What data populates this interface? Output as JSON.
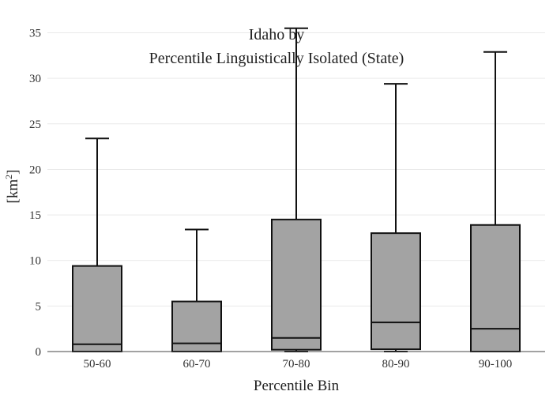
{
  "chart_data": {
    "type": "box",
    "title_lines": [
      "Idaho  by",
      "Percentile Linguistically Isolated (State)"
    ],
    "xlabel": "Percentile Bin",
    "ylabel_main": "[km",
    "ylabel_sup": "2",
    "ylabel_close": "]",
    "ylim": [
      0,
      36
    ],
    "yticks": [
      0,
      5,
      10,
      15,
      20,
      25,
      30,
      35
    ],
    "grid": true,
    "box_fill": "#a3a3a3",
    "box_stroke": "#111111",
    "categories": [
      "50-60",
      "60-70",
      "70-80",
      "80-90",
      "90-100"
    ],
    "boxes": [
      {
        "category": "50-60",
        "min": 0.0,
        "q1": 0.0,
        "median": 0.8,
        "q3": 9.4,
        "max": 23.4
      },
      {
        "category": "60-70",
        "min": 0.0,
        "q1": 0.0,
        "median": 0.9,
        "q3": 5.5,
        "max": 13.4
      },
      {
        "category": "70-80",
        "min": 0.0,
        "q1": 0.2,
        "median": 1.5,
        "q3": 14.5,
        "max": 35.5
      },
      {
        "category": "80-90",
        "min": 0.0,
        "q1": 0.25,
        "median": 3.2,
        "q3": 13.0,
        "max": 29.4
      },
      {
        "category": "90-100",
        "min": 0.0,
        "q1": 0.0,
        "median": 2.5,
        "q3": 13.9,
        "max": 32.9
      }
    ]
  }
}
